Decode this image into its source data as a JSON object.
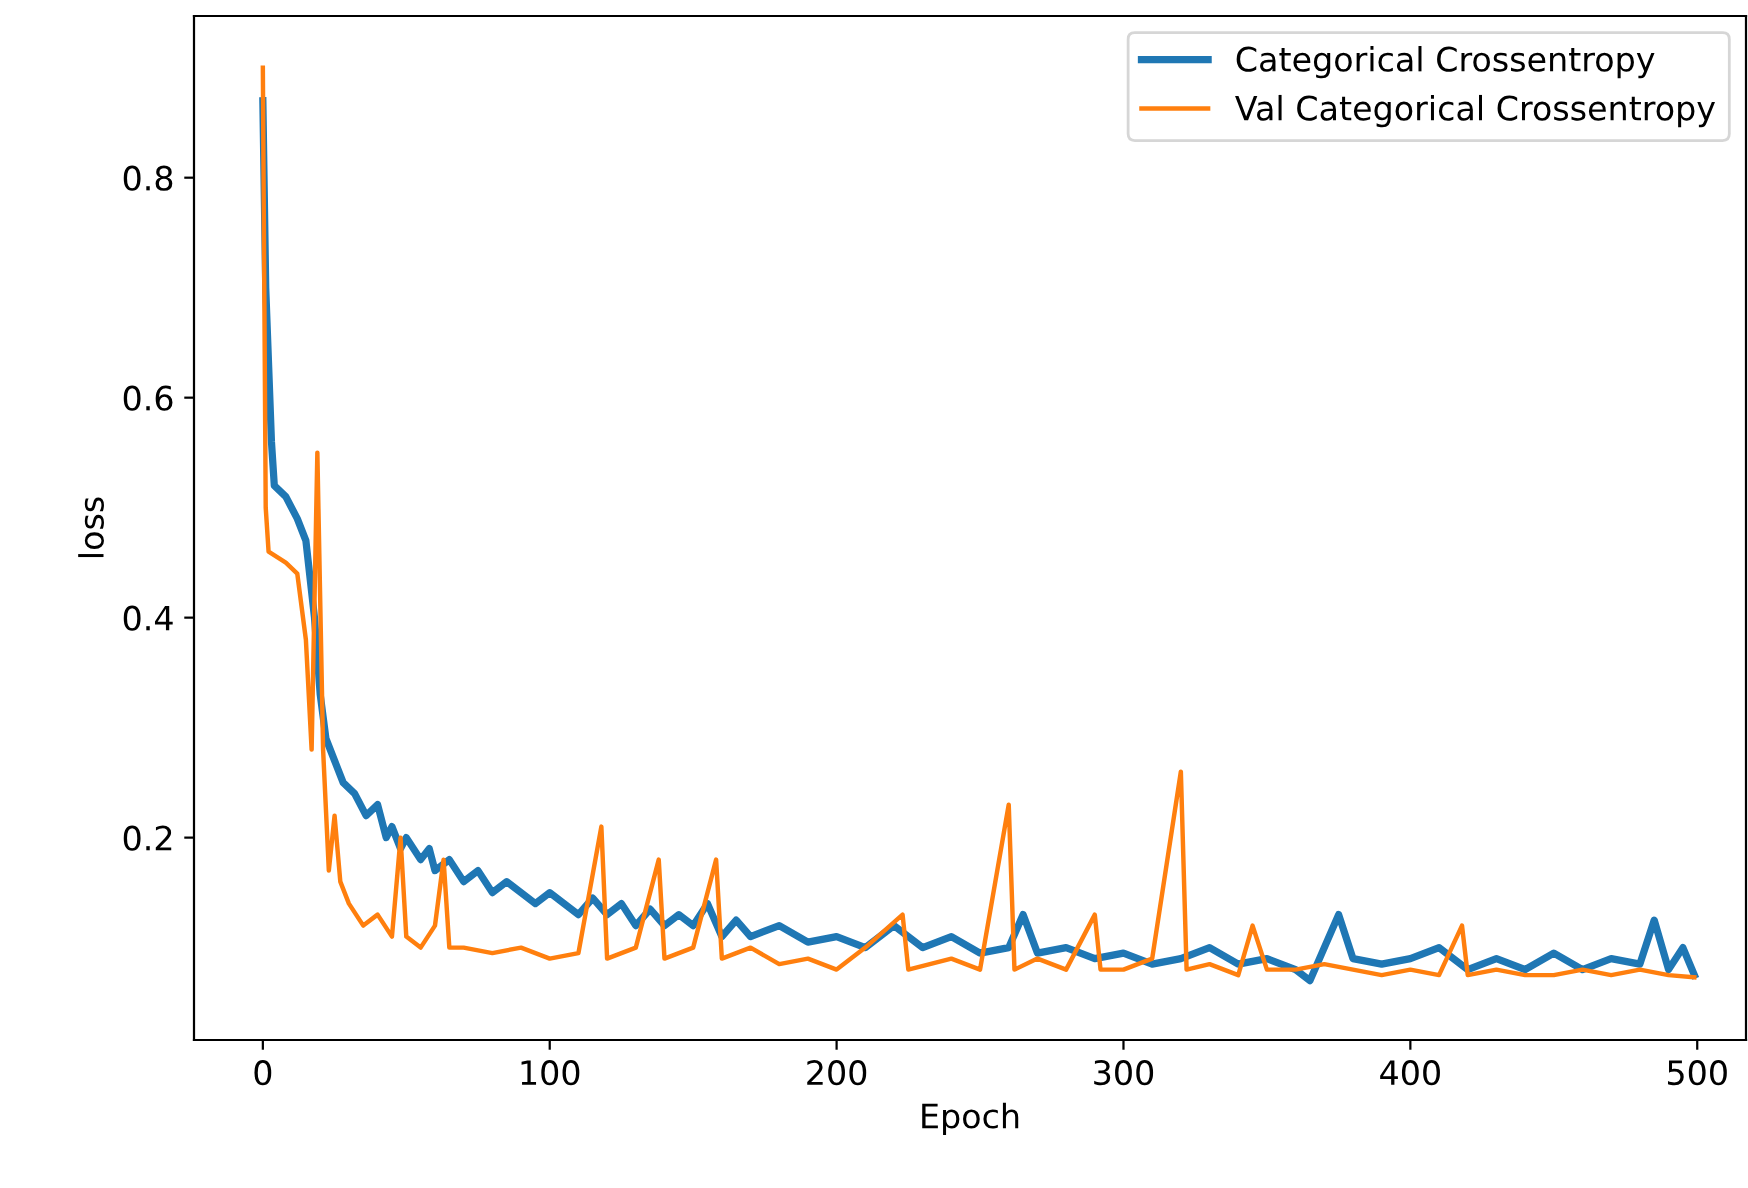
{
  "chart_data": {
    "type": "line",
    "xlabel": "Epoch",
    "ylabel": "loss",
    "xlim": [
      -24,
      517
    ],
    "ylim": [
      0.016,
      0.947
    ],
    "xticks": [
      0,
      100,
      200,
      300,
      400,
      500
    ],
    "yticks": [
      0.2,
      0.4,
      0.6,
      0.8
    ],
    "grid": false,
    "legend": "top right",
    "marker": "none",
    "line_style": "solid",
    "series": [
      {
        "name": "Categorical Crossentropy",
        "color": "#1f77b4",
        "x": [
          0,
          1,
          3,
          4,
          8,
          12,
          15,
          18,
          20,
          22,
          25,
          28,
          32,
          36,
          40,
          43,
          45,
          48,
          50,
          55,
          58,
          60,
          65,
          70,
          75,
          80,
          85,
          90,
          95,
          100,
          105,
          110,
          115,
          120,
          125,
          130,
          135,
          140,
          145,
          150,
          155,
          160,
          165,
          170,
          180,
          190,
          200,
          210,
          220,
          230,
          240,
          250,
          260,
          265,
          270,
          280,
          290,
          300,
          310,
          320,
          330,
          340,
          350,
          360,
          365,
          370,
          375,
          380,
          390,
          400,
          410,
          420,
          430,
          440,
          450,
          460,
          470,
          480,
          485,
          490,
          495,
          499
        ],
        "values": [
          0.87,
          0.7,
          0.56,
          0.52,
          0.51,
          0.49,
          0.47,
          0.4,
          0.33,
          0.29,
          0.27,
          0.25,
          0.24,
          0.22,
          0.23,
          0.2,
          0.21,
          0.19,
          0.2,
          0.18,
          0.19,
          0.17,
          0.18,
          0.16,
          0.17,
          0.15,
          0.16,
          0.15,
          0.14,
          0.15,
          0.14,
          0.13,
          0.145,
          0.13,
          0.14,
          0.12,
          0.135,
          0.12,
          0.13,
          0.12,
          0.14,
          0.11,
          0.125,
          0.11,
          0.12,
          0.105,
          0.11,
          0.1,
          0.12,
          0.1,
          0.11,
          0.095,
          0.1,
          0.13,
          0.095,
          0.1,
          0.09,
          0.095,
          0.085,
          0.09,
          0.1,
          0.085,
          0.09,
          0.08,
          0.07,
          0.1,
          0.13,
          0.09,
          0.085,
          0.09,
          0.1,
          0.08,
          0.09,
          0.08,
          0.095,
          0.08,
          0.09,
          0.085,
          0.125,
          0.08,
          0.1,
          0.075
        ]
      },
      {
        "name": "Val Categorical Crossentropy",
        "color": "#ff7f0e",
        "x": [
          0,
          1,
          2,
          8,
          12,
          15,
          17,
          19,
          21,
          23,
          25,
          27,
          30,
          35,
          40,
          45,
          48,
          50,
          55,
          60,
          63,
          65,
          70,
          80,
          90,
          100,
          110,
          118,
          120,
          130,
          138,
          140,
          150,
          158,
          160,
          170,
          180,
          190,
          200,
          210,
          223,
          225,
          240,
          250,
          260,
          262,
          270,
          280,
          290,
          292,
          300,
          310,
          320,
          322,
          330,
          340,
          345,
          350,
          360,
          370,
          380,
          390,
          400,
          410,
          418,
          420,
          430,
          440,
          450,
          460,
          470,
          480,
          490,
          499
        ],
        "values": [
          0.9,
          0.5,
          0.46,
          0.45,
          0.44,
          0.38,
          0.28,
          0.55,
          0.28,
          0.17,
          0.22,
          0.16,
          0.14,
          0.12,
          0.13,
          0.11,
          0.2,
          0.11,
          0.1,
          0.12,
          0.18,
          0.1,
          0.1,
          0.095,
          0.1,
          0.09,
          0.095,
          0.21,
          0.09,
          0.1,
          0.18,
          0.09,
          0.1,
          0.18,
          0.09,
          0.1,
          0.085,
          0.09,
          0.08,
          0.1,
          0.13,
          0.08,
          0.09,
          0.08,
          0.23,
          0.08,
          0.09,
          0.08,
          0.13,
          0.08,
          0.08,
          0.09,
          0.26,
          0.08,
          0.085,
          0.075,
          0.12,
          0.08,
          0.08,
          0.085,
          0.08,
          0.075,
          0.08,
          0.075,
          0.12,
          0.075,
          0.08,
          0.075,
          0.075,
          0.08,
          0.075,
          0.08,
          0.075,
          0.073
        ]
      }
    ]
  }
}
